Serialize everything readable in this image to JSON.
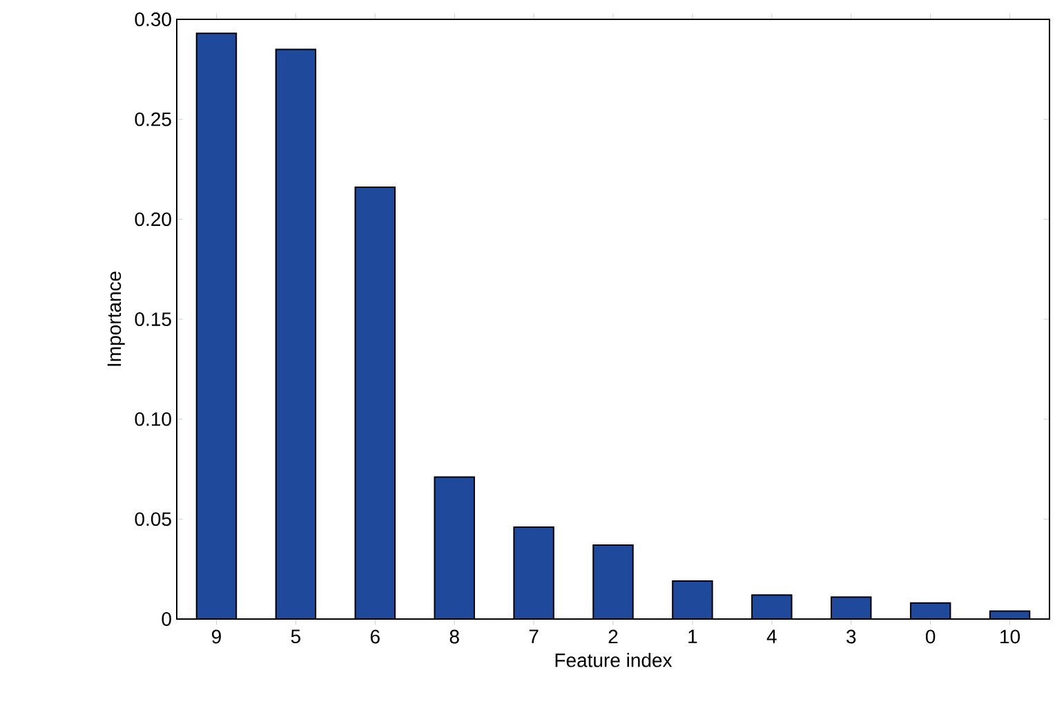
{
  "chart_data": {
    "type": "bar",
    "xlabel": "Feature index",
    "ylabel": "Importance",
    "categories": [
      "9",
      "5",
      "6",
      "8",
      "7",
      "2",
      "1",
      "4",
      "3",
      "0",
      "10"
    ],
    "values": [
      0.293,
      0.285,
      0.216,
      0.071,
      0.046,
      0.037,
      0.019,
      0.012,
      0.011,
      0.008,
      0.004
    ],
    "color": "#1f4a9c",
    "ylim": [
      0,
      0.3
    ],
    "yticks": [
      {
        "value": 0,
        "label": "0"
      },
      {
        "value": 0.05,
        "label": "0.05"
      },
      {
        "value": 0.1,
        "label": "0.10"
      },
      {
        "value": 0.15,
        "label": "0.15"
      },
      {
        "value": 0.2,
        "label": "0.20"
      },
      {
        "value": 0.25,
        "label": "0.25"
      },
      {
        "value": 0.3,
        "label": "0.30"
      }
    ],
    "grid": false
  }
}
